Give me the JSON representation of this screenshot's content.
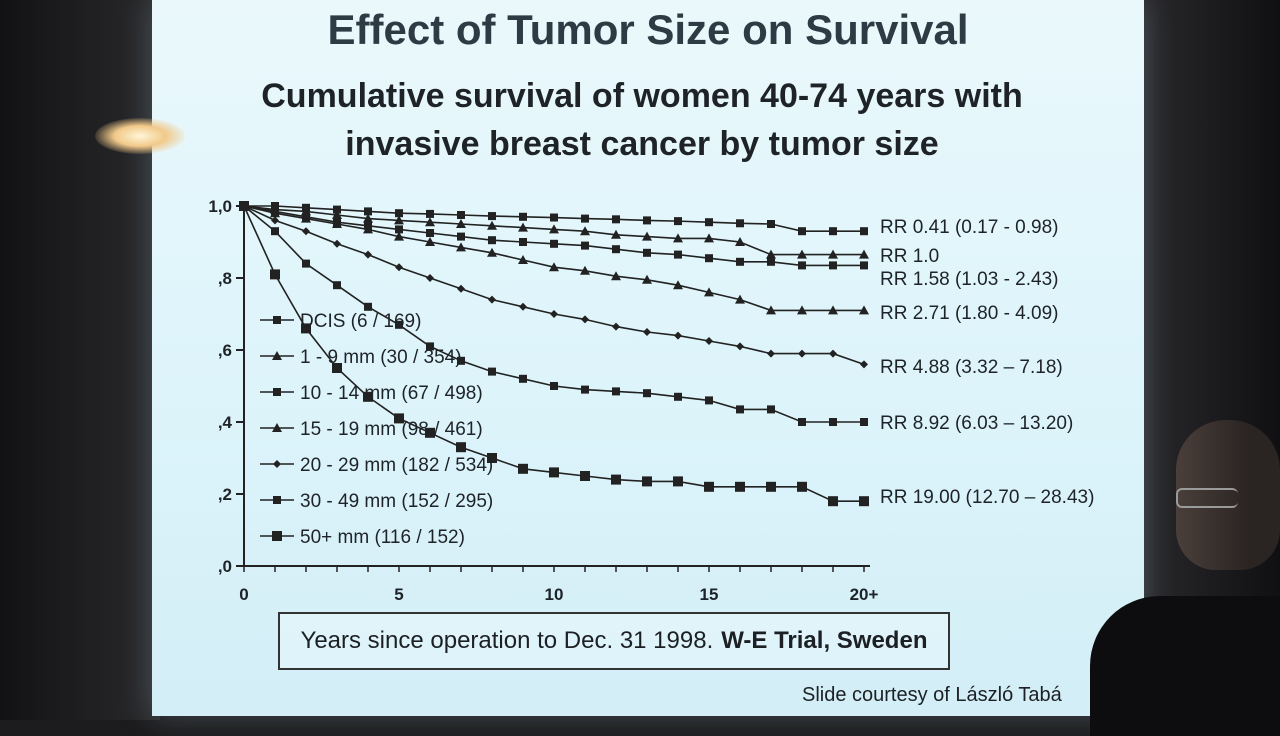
{
  "slide": {
    "title": "Effect of Tumor Size on Survival",
    "subtitle_line1": "Cumulative survival of women 40-74 years with",
    "subtitle_line2": "invasive breast cancer by tumor size",
    "footer_prefix": "Years since operation to Dec. 31 1998.",
    "footer_bold": "W-E Trial, Sweden",
    "credit": "Slide courtesy of László Tabá"
  },
  "chart_data": {
    "type": "line",
    "title": "",
    "xlabel": "",
    "ylabel": "",
    "xlim": [
      0,
      20
    ],
    "ylim": [
      0,
      1
    ],
    "x_ticks": [
      {
        "value": 0,
        "label": "0"
      },
      {
        "value": 5,
        "label": "5"
      },
      {
        "value": 10,
        "label": "10"
      },
      {
        "value": 15,
        "label": "15"
      },
      {
        "value": 20,
        "label": "20+"
      }
    ],
    "y_ticks": [
      {
        "value": 0.0,
        "label": ",0"
      },
      {
        "value": 0.2,
        "label": ",2"
      },
      {
        "value": 0.4,
        "label": ",4"
      },
      {
        "value": 0.6,
        "label": ",6"
      },
      {
        "value": 0.8,
        "label": ",8"
      },
      {
        "value": 1.0,
        "label": "1,0"
      }
    ],
    "grid": false,
    "legend_position": "lower-left",
    "series": [
      {
        "name": "DCIS (6 / 169)",
        "marker": "square",
        "rr_label": "RR 0.41 (0.17 - 0.98)",
        "x": [
          0,
          1,
          2,
          3,
          4,
          5,
          6,
          7,
          8,
          9,
          10,
          11,
          12,
          13,
          14,
          15,
          16,
          17,
          18,
          19,
          20
        ],
        "y": [
          1.0,
          1.0,
          0.995,
          0.99,
          0.985,
          0.98,
          0.978,
          0.975,
          0.972,
          0.97,
          0.968,
          0.965,
          0.963,
          0.96,
          0.958,
          0.955,
          0.952,
          0.95,
          0.93,
          0.93,
          0.93
        ]
      },
      {
        "name": "1 - 9 mm (30 / 354)",
        "marker": "triangle",
        "rr_label": "RR 1.0",
        "x": [
          0,
          1,
          2,
          3,
          4,
          5,
          6,
          7,
          8,
          9,
          10,
          11,
          12,
          13,
          14,
          15,
          16,
          17,
          18,
          19,
          20
        ],
        "y": [
          1.0,
          0.99,
          0.985,
          0.975,
          0.965,
          0.96,
          0.955,
          0.95,
          0.945,
          0.94,
          0.935,
          0.93,
          0.92,
          0.915,
          0.91,
          0.91,
          0.9,
          0.865,
          0.865,
          0.865,
          0.865
        ]
      },
      {
        "name": "10 - 14 mm (67 / 498)",
        "marker": "square",
        "rr_label": "RR 1.58 (1.03 - 2.43)",
        "x": [
          0,
          1,
          2,
          3,
          4,
          5,
          6,
          7,
          8,
          9,
          10,
          11,
          12,
          13,
          14,
          15,
          16,
          17,
          18,
          19,
          20
        ],
        "y": [
          1.0,
          0.985,
          0.97,
          0.955,
          0.945,
          0.935,
          0.925,
          0.915,
          0.905,
          0.9,
          0.895,
          0.89,
          0.88,
          0.87,
          0.865,
          0.855,
          0.845,
          0.845,
          0.835,
          0.835,
          0.835
        ]
      },
      {
        "name": "15 - 19 mm (98 / 461)",
        "marker": "triangle",
        "rr_label": "RR 2.71 (1.80 - 4.09)",
        "x": [
          0,
          1,
          2,
          3,
          4,
          5,
          6,
          7,
          8,
          9,
          10,
          11,
          12,
          13,
          14,
          15,
          16,
          17,
          18,
          19,
          20
        ],
        "y": [
          1.0,
          0.98,
          0.965,
          0.95,
          0.935,
          0.915,
          0.9,
          0.885,
          0.87,
          0.85,
          0.83,
          0.82,
          0.805,
          0.795,
          0.78,
          0.76,
          0.74,
          0.71,
          0.71,
          0.71,
          0.71
        ]
      },
      {
        "name": "20 - 29 mm (182 / 534)",
        "marker": "diamond",
        "rr_label": "RR 4.88 (3.32 – 7.18)",
        "x": [
          0,
          1,
          2,
          3,
          4,
          5,
          6,
          7,
          8,
          9,
          10,
          11,
          12,
          13,
          14,
          15,
          16,
          17,
          18,
          19,
          20
        ],
        "y": [
          1.0,
          0.96,
          0.93,
          0.895,
          0.865,
          0.83,
          0.8,
          0.77,
          0.74,
          0.72,
          0.7,
          0.685,
          0.665,
          0.65,
          0.64,
          0.625,
          0.61,
          0.59,
          0.59,
          0.59,
          0.56
        ]
      },
      {
        "name": "30 - 49 mm (152 / 295)",
        "marker": "square",
        "rr_label": "RR 8.92 (6.03 – 13.20)",
        "x": [
          0,
          1,
          2,
          3,
          4,
          5,
          6,
          7,
          8,
          9,
          10,
          11,
          12,
          13,
          14,
          15,
          16,
          17,
          18,
          19,
          20
        ],
        "y": [
          1.0,
          0.93,
          0.84,
          0.78,
          0.72,
          0.67,
          0.61,
          0.57,
          0.54,
          0.52,
          0.5,
          0.49,
          0.485,
          0.48,
          0.47,
          0.46,
          0.435,
          0.435,
          0.4,
          0.4,
          0.4
        ]
      },
      {
        "name": "50+ mm (116 / 152)",
        "marker": "square-filled",
        "rr_label": "RR 19.00 (12.70 – 28.43)",
        "x": [
          0,
          1,
          2,
          3,
          4,
          5,
          6,
          7,
          8,
          9,
          10,
          11,
          12,
          13,
          14,
          15,
          16,
          17,
          18,
          19,
          20
        ],
        "y": [
          1.0,
          0.81,
          0.66,
          0.55,
          0.47,
          0.41,
          0.37,
          0.33,
          0.3,
          0.27,
          0.26,
          0.25,
          0.24,
          0.235,
          0.235,
          0.22,
          0.22,
          0.22,
          0.22,
          0.18,
          0.18
        ]
      }
    ]
  }
}
